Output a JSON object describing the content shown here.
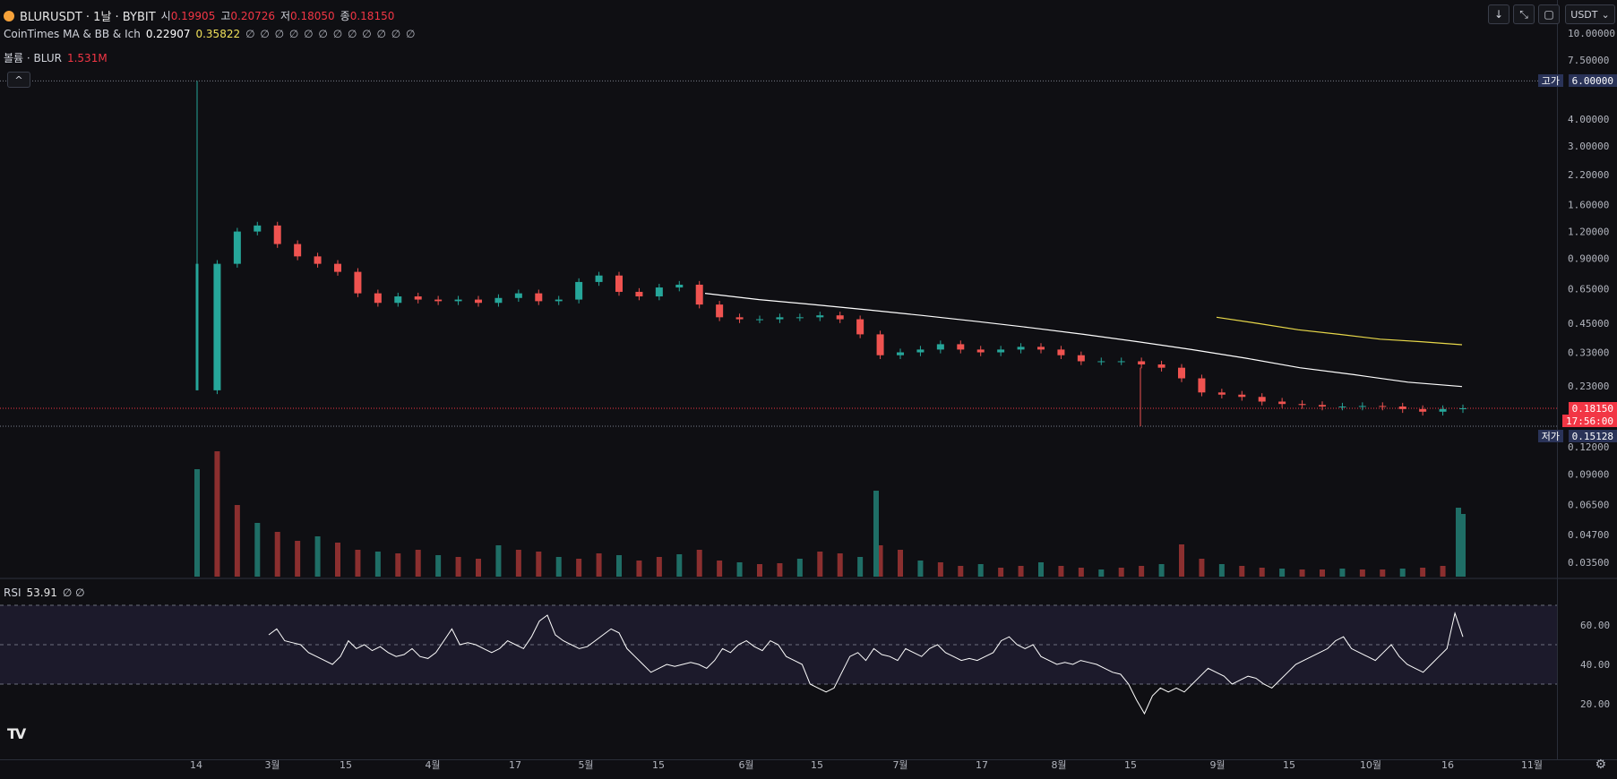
{
  "header": {
    "symbol_line": "BLURUSDT · 1날 · BYBIT",
    "ohlc": [
      {
        "k": "시",
        "v": "0.19905"
      },
      {
        "k": "고",
        "v": "0.20726"
      },
      {
        "k": "저",
        "v": "0.18050"
      },
      {
        "k": "종",
        "v": "0.18150"
      }
    ],
    "indicator_name": "CoinTimes MA & BB & Ich",
    "ma1_value": "0.22907",
    "ma2_value": "0.35822",
    "indicator_empty": "∅ ∅ ∅ ∅ ∅ ∅ ∅ ∅ ∅ ∅ ∅ ∅",
    "volume_name": "볼륨 · BLUR",
    "volume_value": "1.531M",
    "collapse_label": "^",
    "rsi_name": "RSI",
    "rsi_value": "53.91",
    "rsi_empty": "∅ ∅"
  },
  "toolbar": {
    "down_icon": "arrow-down-icon",
    "collapse_icon": "collapse-icon",
    "fullscreen_icon": "fullscreen-icon",
    "currency_label": "USDT"
  },
  "price_tags": {
    "high_label": "고가",
    "high_value": "6.00000",
    "low_label": "저가",
    "low_value": "0.15128",
    "last_value": "0.18150",
    "countdown": "17:56:00"
  },
  "colors": {
    "up": "#26a69a",
    "down": "#ef5350",
    "ma1": "#ffffff",
    "ma2": "#e8d84a",
    "rsi_line": "#ffffff",
    "last_price": "#f23645",
    "highlow_bg": "#2a3358"
  },
  "chart_data": [
    {
      "type": "candlestick",
      "title": "BLURUSDT · 1날 · BYBIT",
      "scale": "log",
      "y_ticks": [
        "10.00000",
        "7.50000",
        "6.00000",
        "4.00000",
        "3.00000",
        "2.20000",
        "1.60000",
        "1.20000",
        "0.90000",
        "0.65000",
        "0.45000",
        "0.33000",
        "0.23000",
        "0.18150",
        "0.12000",
        "0.09000",
        "0.06500",
        "0.04700",
        "0.03500"
      ],
      "x_ticks": [
        "14",
        "3월",
        "15",
        "4월",
        "17",
        "5월",
        "15",
        "6월",
        "15",
        "7월",
        "17",
        "8월",
        "15",
        "9월",
        "15",
        "10월",
        "16",
        "11월"
      ],
      "series": [
        {
          "name": "price",
          "approx_close": [
            0.22,
            0.85,
            1.2,
            1.28,
            1.05,
            0.92,
            0.85,
            0.78,
            0.62,
            0.56,
            0.6,
            0.58,
            0.57,
            0.58,
            0.56,
            0.59,
            0.62,
            0.57,
            0.58,
            0.7,
            0.75,
            0.63,
            0.6,
            0.66,
            0.68,
            0.55,
            0.48,
            0.47,
            0.47,
            0.48,
            0.48,
            0.49,
            0.47,
            0.4,
            0.32,
            0.33,
            0.34,
            0.36,
            0.34,
            0.33,
            0.34,
            0.35,
            0.34,
            0.32,
            0.3,
            0.3,
            0.3,
            0.29,
            0.28,
            0.25,
            0.215,
            0.21,
            0.205,
            0.195,
            0.19,
            0.188,
            0.185,
            0.185,
            0.186,
            0.185,
            0.18,
            0.175,
            0.18,
            0.1815
          ]
        },
        {
          "name": "MA1",
          "approx_values": [
            0.62,
            0.58,
            0.55,
            0.52,
            0.49,
            0.46,
            0.43,
            0.4,
            0.37,
            0.34,
            0.31,
            0.28,
            0.26,
            0.24,
            0.229
          ]
        },
        {
          "name": "MA2",
          "approx_values": [
            0.48,
            0.45,
            0.42,
            0.4,
            0.38,
            0.37,
            0.358
          ]
        }
      ]
    },
    {
      "type": "bar",
      "title": "볼륨 · BLUR",
      "last_value": "1.531M"
    },
    {
      "type": "line",
      "title": "RSI",
      "last_value": 53.91,
      "y_ticks": [
        "60.00",
        "40.00",
        "20.00"
      ],
      "bands": [
        70,
        50,
        30
      ],
      "ylim": [
        10,
        75
      ],
      "values": [
        55,
        58,
        52,
        51,
        50,
        46,
        44,
        42,
        40,
        44,
        52,
        48,
        50,
        47,
        49,
        46,
        44,
        45,
        48,
        44,
        43,
        46,
        52,
        58,
        50,
        51,
        50,
        48,
        46,
        48,
        52,
        50,
        48,
        54,
        62,
        65,
        55,
        52,
        50,
        48,
        49,
        52,
        55,
        58,
        56,
        48,
        44,
        40,
        36,
        38,
        40,
        39,
        40,
        41,
        40,
        38,
        42,
        48,
        46,
        50,
        52,
        49,
        47,
        52,
        50,
        44,
        42,
        40,
        30,
        28,
        26,
        28,
        36,
        44,
        46,
        42,
        48,
        45,
        44,
        42,
        48,
        46,
        44,
        48,
        50,
        46,
        44,
        42,
        43,
        42,
        44,
        46,
        52,
        54,
        50,
        48,
        50,
        44,
        42,
        40,
        41,
        40,
        42,
        41,
        40,
        38,
        36,
        35,
        30,
        22,
        15,
        24,
        28,
        26,
        28,
        26,
        30,
        34,
        38,
        36,
        34,
        30,
        32,
        34,
        33,
        30,
        28,
        32,
        36,
        40,
        42,
        44,
        46,
        48,
        52,
        54,
        48,
        46,
        44,
        42,
        46,
        50,
        44,
        40,
        38,
        36,
        40,
        44,
        48,
        66,
        54
      ]
    }
  ]
}
